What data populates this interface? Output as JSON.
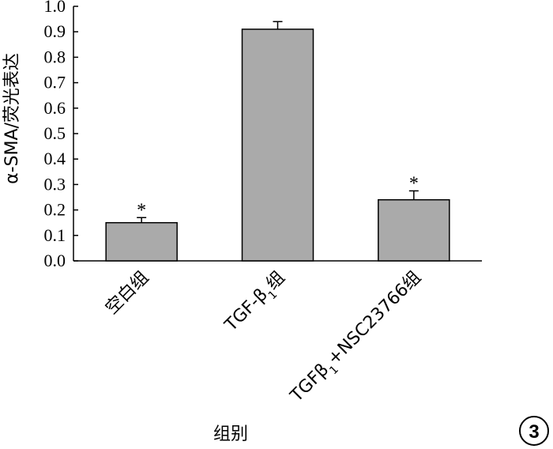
{
  "chart_data": {
    "type": "bar",
    "ylabel": "α-SMA/荧光表达",
    "xlabel": "组别",
    "ylim": [
      0,
      1.0
    ],
    "yticks": [
      "0.0",
      "0.1",
      "0.2",
      "0.3",
      "0.4",
      "0.5",
      "0.6",
      "0.7",
      "0.8",
      "0.9",
      "1.0"
    ],
    "categories": [
      {
        "label": "空白组",
        "base": "空白组",
        "sub": "",
        "tail": ""
      },
      {
        "label": "TGF-β1组",
        "base": "TGF-β",
        "sub": "1",
        "tail": "组"
      },
      {
        "label": "TGFβ1+NSC23766组",
        "base": "TGFβ",
        "sub": "1",
        "tail": "+NSC23766组"
      }
    ],
    "values": [
      0.15,
      0.91,
      0.24
    ],
    "errors": [
      0.02,
      0.03,
      0.035
    ],
    "annotations": [
      "*",
      "",
      "*"
    ],
    "bar_color": "#aaaaaa",
    "grid": false,
    "panel_label": "3"
  }
}
